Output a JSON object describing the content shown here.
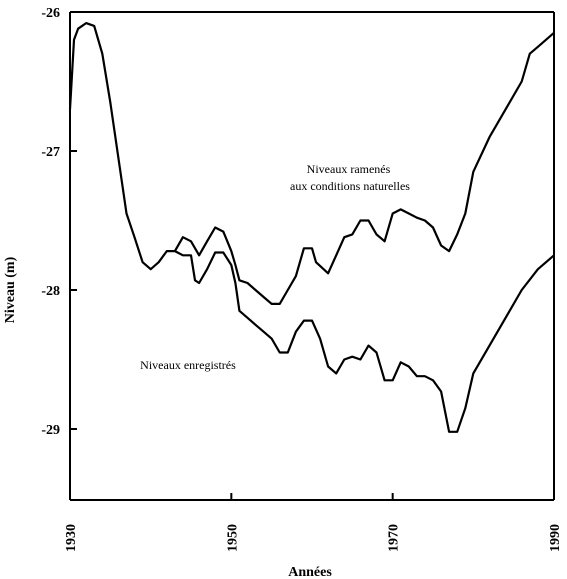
{
  "chart_data": {
    "type": "line",
    "xlabel": "Années",
    "ylabel": "Niveau (m)",
    "xlim": [
      1930,
      1990
    ],
    "ylim": [
      -29.5,
      -26
    ],
    "x_ticks": [
      1930,
      1950,
      1970,
      1990
    ],
    "y_ticks": [
      -26,
      -27,
      -28,
      -29
    ],
    "x_tick_labels": [
      "1930",
      "1950",
      "1970",
      "1990"
    ],
    "y_tick_labels": [
      "-26",
      "-27",
      "-28",
      "-29"
    ],
    "grid": false,
    "legend": "none",
    "annotations": [
      {
        "series": 0,
        "lines": [
          "Niveaux ramenés",
          "aux conditions naturelles"
        ]
      },
      {
        "series": 1,
        "lines": [
          "Niveaux enregistrés"
        ]
      }
    ],
    "series": [
      {
        "name": "Niveaux ramenés aux conditions naturelles",
        "x": [
          1943,
          1944,
          1945,
          1946,
          1947,
          1948,
          1949,
          1950,
          1950.5,
          1951,
          1952,
          1953,
          1954,
          1955,
          1956,
          1957,
          1958,
          1959,
          1960,
          1960.5,
          1962,
          1963,
          1964,
          1965,
          1966,
          1967,
          1967.5,
          1968,
          1969,
          1970,
          1971,
          1972,
          1973,
          1974,
          1975,
          1976,
          1977,
          1978,
          1979,
          1980,
          1982,
          1984,
          1986,
          1987,
          1988,
          1990
        ],
        "values": [
          -27.72,
          -27.62,
          -27.65,
          -27.75,
          -27.65,
          -27.55,
          -27.58,
          -27.72,
          -27.82,
          -27.93,
          -27.95,
          -28.0,
          -28.05,
          -28.1,
          -28.1,
          -28.0,
          -27.9,
          -27.7,
          -27.7,
          -27.8,
          -27.88,
          -27.75,
          -27.62,
          -27.6,
          -27.5,
          -27.5,
          -27.55,
          -27.6,
          -27.65,
          -27.45,
          -27.42,
          -27.45,
          -27.48,
          -27.5,
          -27.55,
          -27.68,
          -27.72,
          -27.6,
          -27.45,
          -27.15,
          -26.9,
          -26.7,
          -26.5,
          -26.3,
          -26.25,
          -26.15
        ]
      },
      {
        "name": "Niveaux enregistrés",
        "x": [
          1930,
          1930.5,
          1931,
          1932,
          1933,
          1934,
          1935,
          1936,
          1937,
          1938,
          1939,
          1940,
          1941,
          1942,
          1943,
          1944,
          1945,
          1945.5,
          1946,
          1947,
          1948,
          1949,
          1950,
          1950.5,
          1951,
          1952,
          1953,
          1954,
          1955,
          1956,
          1957,
          1958,
          1959,
          1960,
          1961,
          1962,
          1963,
          1964,
          1965,
          1966,
          1967,
          1968,
          1969,
          1970,
          1971,
          1972,
          1973,
          1974,
          1975,
          1976,
          1977,
          1978,
          1979,
          1980,
          1982,
          1984,
          1986,
          1988,
          1990
        ],
        "values": [
          -26.7,
          -26.2,
          -26.12,
          -26.08,
          -26.1,
          -26.3,
          -26.65,
          -27.05,
          -27.45,
          -27.62,
          -27.8,
          -27.85,
          -27.8,
          -27.72,
          -27.72,
          -27.75,
          -27.75,
          -27.93,
          -27.95,
          -27.85,
          -27.73,
          -27.73,
          -27.82,
          -27.95,
          -28.15,
          -28.2,
          -28.25,
          -28.3,
          -28.35,
          -28.45,
          -28.45,
          -28.3,
          -28.22,
          -28.22,
          -28.35,
          -28.55,
          -28.6,
          -28.5,
          -28.48,
          -28.5,
          -28.4,
          -28.45,
          -28.65,
          -28.65,
          -28.52,
          -28.55,
          -28.62,
          -28.62,
          -28.65,
          -28.73,
          -29.02,
          -29.02,
          -28.85,
          -28.6,
          -28.4,
          -28.2,
          -28.0,
          -27.85,
          -27.75
        ]
      }
    ]
  }
}
